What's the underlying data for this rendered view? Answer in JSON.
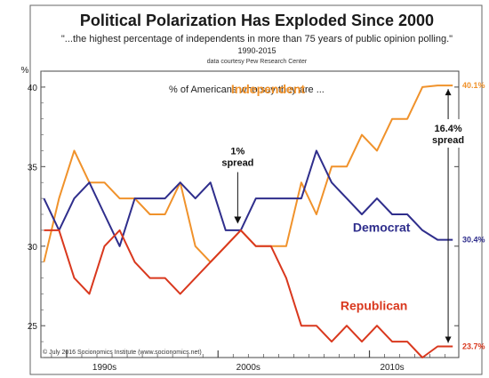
{
  "chart_data": {
    "type": "line",
    "title": "Political Polarization Has Exploded Since 2000",
    "subtitle": "\"...the highest percentage of independents in more than 75 years of public opinion polling.\"",
    "date_range": "1990-2015",
    "source": "data courtesy Pew Research Center",
    "ylabel": "%",
    "ylim": [
      23,
      41
    ],
    "yticks": [
      25,
      30,
      35,
      40
    ],
    "xlim": [
      1988.3,
      2015.9
    ],
    "x_tick_positions": [
      1992.5,
      2002,
      2011.5
    ],
    "x_tick_labels": [
      "1990s",
      "2000s",
      "2010s"
    ],
    "legend_text": "% of Americans who say they are ...",
    "copyright": "© July 2016 Socionomics Institute (www.socionomics.net)",
    "series": [
      {
        "name": "Independent",
        "color": "#f0922b",
        "end_label": "40.1%",
        "x": [
          1988.5,
          1989.5,
          1990.5,
          1991.5,
          1992.5,
          1993.5,
          1994.5,
          1995.5,
          1996.5,
          1997.5,
          1998.5,
          1999.5,
          2000.5,
          2001.5,
          2002.5,
          2003.5,
          2004.5,
          2005.5,
          2006.5,
          2007.5,
          2008.5,
          2009.5,
          2010.5,
          2011.5,
          2012.5,
          2013.5,
          2014.5,
          2015.5
        ],
        "values": [
          29,
          33,
          36,
          34,
          34,
          33,
          33,
          32,
          32,
          34,
          30,
          29,
          30,
          31,
          30,
          30,
          30,
          34,
          32,
          35,
          35,
          37,
          36,
          38,
          38,
          40,
          40.1,
          40.1
        ]
      },
      {
        "name": "Democrat",
        "color": "#2f2e8c",
        "end_label": "30.4%",
        "x": [
          1988.5,
          1989.5,
          1990.5,
          1991.5,
          1992.5,
          1993.5,
          1994.5,
          1995.5,
          1996.5,
          1997.5,
          1998.5,
          1999.5,
          2000.5,
          2001.5,
          2002.5,
          2003.5,
          2004.5,
          2005.5,
          2006.5,
          2007.5,
          2008.5,
          2009.5,
          2010.5,
          2011.5,
          2012.5,
          2013.5,
          2014.5,
          2015.5
        ],
        "values": [
          33,
          31,
          33,
          34,
          32,
          30,
          33,
          33,
          33,
          34,
          33,
          34,
          31,
          31,
          33,
          33,
          33,
          33,
          36,
          34,
          33,
          32,
          33,
          32,
          32,
          31,
          30.4,
          30.4
        ]
      },
      {
        "name": "Republican",
        "color": "#d9381e",
        "end_label": "23.7%",
        "x": [
          1988.5,
          1989.5,
          1990.5,
          1991.5,
          1992.5,
          1993.5,
          1994.5,
          1995.5,
          1996.5,
          1997.5,
          1998.5,
          1999.5,
          2000.5,
          2001.5,
          2002.5,
          2003.5,
          2004.5,
          2005.5,
          2006.5,
          2007.5,
          2008.5,
          2009.5,
          2010.5,
          2011.5,
          2012.5,
          2013.5,
          2014.5,
          2015.5
        ],
        "values": [
          31,
          31,
          28,
          27,
          30,
          31,
          29,
          28,
          28,
          27,
          28,
          29,
          30,
          31,
          30,
          30,
          28,
          25,
          25,
          24,
          25,
          24,
          25,
          24,
          24,
          23,
          23.7,
          23.7
        ]
      }
    ],
    "annotations": [
      {
        "id": "one-pct",
        "line1": "1%",
        "line2": "spread",
        "x": 2001.3,
        "value": 31.3
      },
      {
        "id": "spread-16",
        "line1": "16.4%",
        "line2": "spread",
        "from": 40.1,
        "to": 23.7,
        "x": 2015.2
      }
    ]
  }
}
